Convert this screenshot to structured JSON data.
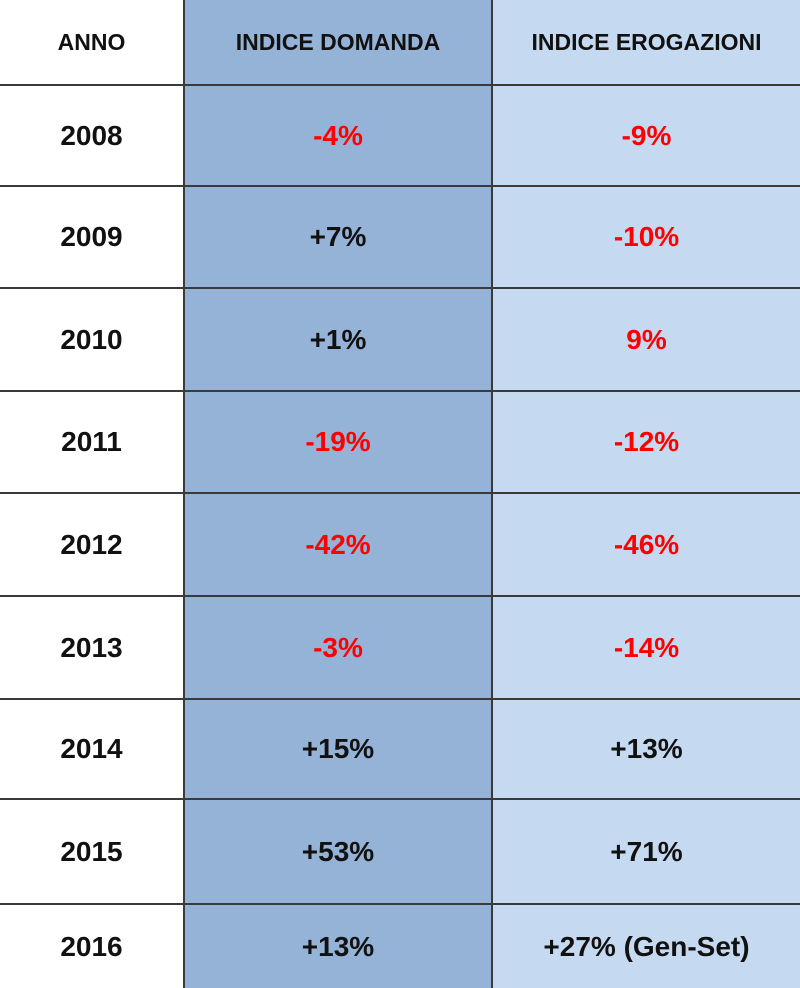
{
  "table": {
    "headers": [
      "ANNO",
      "INDICE DOMANDA",
      "INDICE EROGAZIONI"
    ],
    "rows": [
      [
        "2008",
        "-4%",
        "-9%"
      ],
      [
        "2009",
        "+7%",
        "-10%"
      ],
      [
        "2010",
        "+1%",
        "9%"
      ],
      [
        "2011",
        "-19%",
        "-12%"
      ],
      [
        "2012",
        "-42%",
        "-46%"
      ],
      [
        "2013",
        "-3%",
        "-14%"
      ],
      [
        "2014",
        "+15%",
        "+13%"
      ],
      [
        "2015",
        "+53%",
        "+71%"
      ],
      [
        "2016",
        "+13%",
        "+27% (Gen-Set)"
      ]
    ],
    "cell_colors": [
      [
        "#111111",
        "#ff0000",
        "#ff0000"
      ],
      [
        "#111111",
        "#111111",
        "#ff0000"
      ],
      [
        "#111111",
        "#111111",
        "#ff0000"
      ],
      [
        "#111111",
        "#ff0000",
        "#ff0000"
      ],
      [
        "#111111",
        "#ff0000",
        "#ff0000"
      ],
      [
        "#111111",
        "#ff0000",
        "#ff0000"
      ],
      [
        "#111111",
        "#111111",
        "#111111"
      ],
      [
        "#111111",
        "#111111",
        "#111111"
      ],
      [
        "#111111",
        "#111111",
        "#111111"
      ]
    ]
  }
}
